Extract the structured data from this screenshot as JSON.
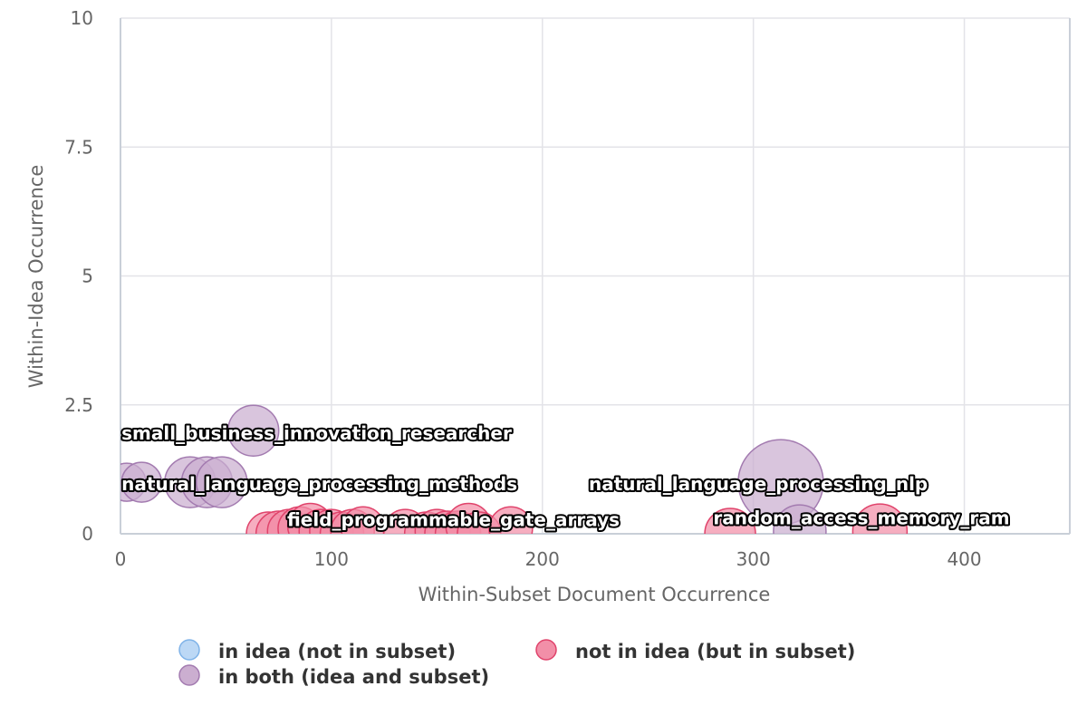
{
  "chart_data": {
    "type": "scatter",
    "xlabel": "Within-Subset Document Occurrence",
    "ylabel": "Within-Idea Occurrence",
    "xlim": [
      0,
      450
    ],
    "ylim": [
      0,
      10
    ],
    "x_ticks": [
      0,
      100,
      200,
      300,
      400
    ],
    "y_ticks": [
      0,
      2.5,
      5,
      7.5,
      10
    ],
    "x_tick_labels": [
      "0",
      "100",
      "200",
      "300",
      "400"
    ],
    "y_tick_labels": [
      "0",
      "2.5",
      "5",
      "7.5",
      "10"
    ],
    "grid": true,
    "legend_position": "bottom",
    "series": [
      {
        "name": "in idea (not in subset)",
        "fill": "#bcd8f5",
        "stroke": "#7fb3e8",
        "points": []
      },
      {
        "name": "not in idea (but in subset)",
        "fill": "#f28fa8",
        "stroke": "#e0436b",
        "points": [
          {
            "x": 70,
            "y": 0,
            "r": 24
          },
          {
            "x": 75,
            "y": 0,
            "r": 25
          },
          {
            "x": 80,
            "y": 0.05,
            "r": 24
          },
          {
            "x": 85,
            "y": 0.1,
            "r": 24
          },
          {
            "x": 90,
            "y": 0.15,
            "r": 25
          },
          {
            "x": 95,
            "y": 0.05,
            "r": 24
          },
          {
            "x": 100,
            "y": 0.05,
            "r": 24
          },
          {
            "x": 105,
            "y": 0,
            "r": 24
          },
          {
            "x": 110,
            "y": 0.05,
            "r": 24
          },
          {
            "x": 115,
            "y": 0.1,
            "r": 24
          },
          {
            "x": 135,
            "y": 0.05,
            "r": 24
          },
          {
            "x": 145,
            "y": 0,
            "r": 24
          },
          {
            "x": 150,
            "y": 0.05,
            "r": 24
          },
          {
            "x": 155,
            "y": 0,
            "r": 25
          },
          {
            "x": 160,
            "y": 0,
            "r": 25
          },
          {
            "x": 165,
            "y": 0.15,
            "r": 25
          },
          {
            "x": 170,
            "y": 0,
            "r": 24
          },
          {
            "x": 185,
            "y": 0.1,
            "r": 24
          },
          {
            "x": 289,
            "y": 0,
            "r": 28
          },
          {
            "x": 360,
            "y": 0.05,
            "r": 30
          }
        ]
      },
      {
        "name": "in both (idea and subset)",
        "fill": "#cbaed0",
        "stroke": "#a37bb0",
        "points": [
          {
            "x": 3,
            "y": 1,
            "r": 21
          },
          {
            "x": 10,
            "y": 1,
            "r": 22
          },
          {
            "x": 33,
            "y": 1,
            "r": 28
          },
          {
            "x": 41,
            "y": 1,
            "r": 28
          },
          {
            "x": 48,
            "y": 1,
            "r": 28
          },
          {
            "x": 63,
            "y": 2,
            "r": 28
          },
          {
            "x": 313,
            "y": 1,
            "r": 47
          },
          {
            "x": 322,
            "y": 0.05,
            "r": 29
          }
        ]
      }
    ],
    "annotations": [
      {
        "text": "small_business_innovation_researcher",
        "x": 0.5,
        "y": 1.95
      },
      {
        "text": "natural_language_processing_methods",
        "x": 0.5,
        "y": 0.97
      },
      {
        "text": "natural_language_processing_nlp",
        "x": 222,
        "y": 0.97
      },
      {
        "text": "field_programmable_gate_arrays",
        "x": 79,
        "y": 0.27
      },
      {
        "text": "random_access_memory_ram",
        "x": 281,
        "y": 0.31
      }
    ]
  }
}
